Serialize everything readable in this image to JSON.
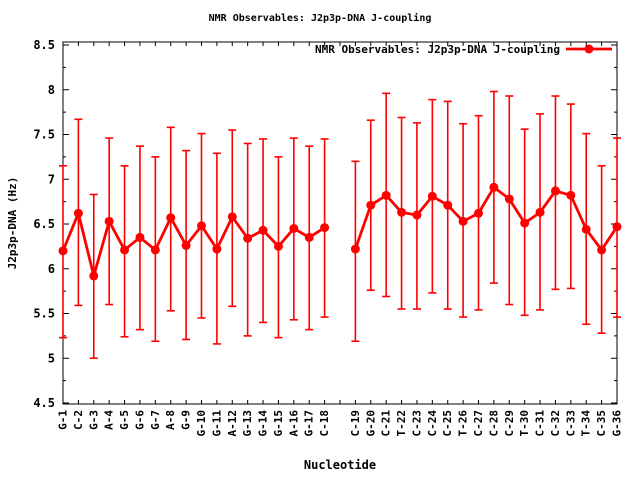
{
  "figure": {
    "title": "NMR Observables: J2p3p-DNA J-coupling"
  },
  "chart_data": {
    "type": "line",
    "title": "NMR Observables: J2p3p-DNA J-coupling",
    "xlabel": "Nucleotide",
    "ylabel": "J2p3p-DNA (Hz)",
    "ylim": [
      4.5,
      8.5
    ],
    "yticks": [
      4.5,
      5,
      5.5,
      6,
      6.5,
      7,
      7.5,
      8,
      8.5
    ],
    "y_minor_step": 0.25,
    "x_slot_count": 37,
    "grid": false,
    "error_bars": true,
    "marker": "filled-circle",
    "color": "#ff0000",
    "axis_color": "#000000",
    "legend": {
      "label": "NMR Observables: J2p3p-DNA J-coupling",
      "position": "top-right-inside"
    },
    "series": [
      {
        "name": "strand-1",
        "points": [
          {
            "label": "G-1",
            "slot": 1,
            "value": 6.2,
            "lo": 5.23,
            "hi": 7.15
          },
          {
            "label": "C-2",
            "slot": 2,
            "value": 6.62,
            "lo": 5.59,
            "hi": 7.67
          },
          {
            "label": "G-3",
            "slot": 3,
            "value": 5.92,
            "lo": 5.0,
            "hi": 6.83
          },
          {
            "label": "A-4",
            "slot": 4,
            "value": 6.53,
            "lo": 5.6,
            "hi": 7.46
          },
          {
            "label": "G-5",
            "slot": 5,
            "value": 6.21,
            "lo": 5.24,
            "hi": 7.15
          },
          {
            "label": "G-6",
            "slot": 6,
            "value": 6.35,
            "lo": 5.32,
            "hi": 7.37
          },
          {
            "label": "G-7",
            "slot": 7,
            "value": 6.21,
            "lo": 5.19,
            "hi": 7.25
          },
          {
            "label": "A-8",
            "slot": 8,
            "value": 6.57,
            "lo": 5.53,
            "hi": 7.58
          },
          {
            "label": "G-9",
            "slot": 9,
            "value": 6.26,
            "lo": 5.21,
            "hi": 7.32
          },
          {
            "label": "G-10",
            "slot": 10,
            "value": 6.48,
            "lo": 5.45,
            "hi": 7.51
          },
          {
            "label": "G-11",
            "slot": 11,
            "value": 6.22,
            "lo": 5.16,
            "hi": 7.29
          },
          {
            "label": "A-12",
            "slot": 12,
            "value": 6.58,
            "lo": 5.58,
            "hi": 7.55
          },
          {
            "label": "G-13",
            "slot": 13,
            "value": 6.34,
            "lo": 5.25,
            "hi": 7.4
          },
          {
            "label": "G-14",
            "slot": 14,
            "value": 6.43,
            "lo": 5.4,
            "hi": 7.45
          },
          {
            "label": "G-15",
            "slot": 15,
            "value": 6.25,
            "lo": 5.23,
            "hi": 7.25
          },
          {
            "label": "A-16",
            "slot": 16,
            "value": 6.45,
            "lo": 5.43,
            "hi": 7.46
          },
          {
            "label": "G-17",
            "slot": 17,
            "value": 6.35,
            "lo": 5.32,
            "hi": 7.37
          },
          {
            "label": "C-18",
            "slot": 18,
            "value": 6.46,
            "lo": 5.46,
            "hi": 7.45
          }
        ]
      },
      {
        "name": "strand-2",
        "points": [
          {
            "label": "C-19",
            "slot": 20,
            "value": 6.22,
            "lo": 5.19,
            "hi": 7.2
          },
          {
            "label": "G-20",
            "slot": 21,
            "value": 6.71,
            "lo": 5.76,
            "hi": 7.66
          },
          {
            "label": "C-21",
            "slot": 22,
            "value": 6.82,
            "lo": 5.69,
            "hi": 7.96
          },
          {
            "label": "T-22",
            "slot": 23,
            "value": 6.63,
            "lo": 5.55,
            "hi": 7.69
          },
          {
            "label": "C-23",
            "slot": 24,
            "value": 6.6,
            "lo": 5.55,
            "hi": 7.63
          },
          {
            "label": "C-24",
            "slot": 25,
            "value": 6.81,
            "lo": 5.73,
            "hi": 7.89
          },
          {
            "label": "C-25",
            "slot": 26,
            "value": 6.71,
            "lo": 5.55,
            "hi": 7.87
          },
          {
            "label": "T-26",
            "slot": 27,
            "value": 6.53,
            "lo": 5.46,
            "hi": 7.62
          },
          {
            "label": "C-27",
            "slot": 28,
            "value": 6.62,
            "lo": 5.54,
            "hi": 7.71
          },
          {
            "label": "C-28",
            "slot": 29,
            "value": 6.91,
            "lo": 5.84,
            "hi": 7.98
          },
          {
            "label": "C-29",
            "slot": 30,
            "value": 6.78,
            "lo": 5.6,
            "hi": 7.93
          },
          {
            "label": "T-30",
            "slot": 31,
            "value": 6.51,
            "lo": 5.48,
            "hi": 7.56
          },
          {
            "label": "C-31",
            "slot": 32,
            "value": 6.63,
            "lo": 5.54,
            "hi": 7.73
          },
          {
            "label": "C-32",
            "slot": 33,
            "value": 6.87,
            "lo": 5.77,
            "hi": 7.93
          },
          {
            "label": "C-33",
            "slot": 34,
            "value": 6.82,
            "lo": 5.78,
            "hi": 7.84
          },
          {
            "label": "T-34",
            "slot": 35,
            "value": 6.44,
            "lo": 5.38,
            "hi": 7.51
          },
          {
            "label": "C-35",
            "slot": 36,
            "value": 6.21,
            "lo": 5.28,
            "hi": 7.15
          },
          {
            "label": "G-36",
            "slot": 37,
            "value": 6.47,
            "lo": 5.46,
            "hi": 7.46
          }
        ]
      }
    ]
  }
}
